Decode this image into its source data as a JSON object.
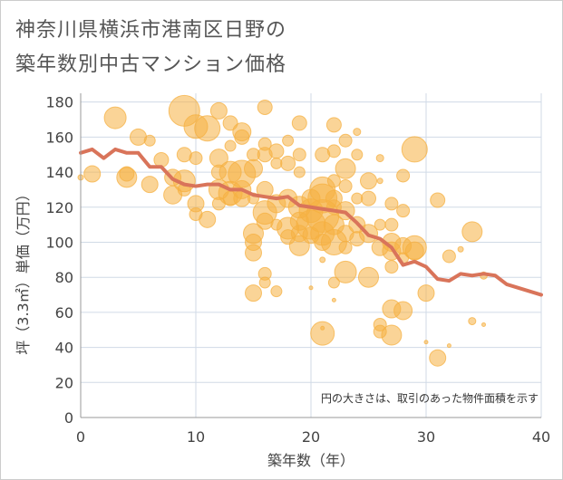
{
  "title_lines": [
    "神奈川県横浜市港南区日野の",
    "築年数別中古マンション価格"
  ],
  "chart_data": {
    "type": "scatter",
    "title": "神奈川県横浜市港南区日野の築年数別中古マンション価格",
    "xlabel": "築年数（年）",
    "ylabel": "坪（3.3㎡）単価（万円）",
    "xlim": [
      0,
      40
    ],
    "ylim": [
      0,
      185
    ],
    "x_ticks": [
      0,
      10,
      20,
      30,
      40
    ],
    "y_ticks": [
      0,
      20,
      40,
      60,
      80,
      100,
      120,
      140,
      160,
      180
    ],
    "grid": true,
    "note": "円の大きさは、取引のあった物件面積を示す",
    "colors": {
      "bubble": "#f5b041",
      "line": "#d9745a",
      "grid": "#d0dae6",
      "axis": "#999999"
    },
    "series": [
      {
        "type": "line",
        "x": [
          0,
          1,
          2,
          3,
          4,
          5,
          6,
          7,
          8,
          9,
          10,
          11,
          12,
          13,
          14,
          15,
          16,
          17,
          18,
          19,
          20,
          21,
          22,
          23,
          24,
          25,
          26,
          27,
          28,
          29,
          30,
          31,
          32,
          33,
          34,
          35,
          36,
          37,
          38,
          39,
          40
        ],
        "values": [
          151,
          153,
          148,
          153,
          151,
          151,
          143,
          143,
          136,
          133,
          132,
          133,
          133,
          130,
          130,
          127,
          126,
          125,
          126,
          121,
          120,
          119,
          118,
          117,
          111,
          104,
          102,
          97,
          87,
          89,
          86,
          79,
          78,
          82,
          81,
          82,
          81,
          76,
          74,
          72,
          70
        ]
      },
      {
        "type": "bubble",
        "points": [
          [
            0,
            137,
            3
          ],
          [
            1,
            139,
            9
          ],
          [
            3,
            171,
            12
          ],
          [
            4,
            139,
            8
          ],
          [
            4,
            137,
            11
          ],
          [
            5,
            160,
            9
          ],
          [
            6,
            158,
            6
          ],
          [
            6,
            133,
            9
          ],
          [
            7,
            147,
            8
          ],
          [
            8,
            127,
            10
          ],
          [
            8,
            137,
            9
          ],
          [
            9,
            175,
            17
          ],
          [
            9,
            150,
            8
          ],
          [
            9,
            135,
            12
          ],
          [
            9,
            130,
            7
          ],
          [
            10,
            166,
            13
          ],
          [
            10,
            148,
            7
          ],
          [
            10,
            122,
            9
          ],
          [
            10,
            116,
            7
          ],
          [
            11,
            165,
            14
          ],
          [
            11,
            113,
            9
          ],
          [
            12,
            175,
            9
          ],
          [
            12,
            148,
            10
          ],
          [
            12,
            140,
            8
          ],
          [
            12,
            130,
            11
          ],
          [
            12,
            122,
            7
          ],
          [
            13,
            168,
            8
          ],
          [
            13,
            155,
            6
          ],
          [
            13,
            140,
            12
          ],
          [
            13,
            128,
            13
          ],
          [
            13,
            125,
            8
          ],
          [
            14,
            163,
            10
          ],
          [
            14,
            160,
            8
          ],
          [
            14,
            139,
            15
          ],
          [
            14,
            130,
            10
          ],
          [
            14,
            125,
            9
          ],
          [
            15,
            150,
            7
          ],
          [
            15,
            142,
            10
          ],
          [
            15,
            125,
            6
          ],
          [
            15,
            105,
            11
          ],
          [
            15,
            100,
            9
          ],
          [
            15,
            94,
            9
          ],
          [
            15,
            71,
            9
          ],
          [
            16,
            177,
            8
          ],
          [
            16,
            156,
            7
          ],
          [
            16,
            150,
            8
          ],
          [
            16,
            130,
            9
          ],
          [
            16,
            117,
            13
          ],
          [
            16,
            112,
            9
          ],
          [
            16,
            82,
            7
          ],
          [
            16,
            77,
            6
          ],
          [
            17,
            152,
            8
          ],
          [
            17,
            145,
            6
          ],
          [
            17,
            122,
            10
          ],
          [
            17,
            110,
            6
          ],
          [
            17,
            72,
            6
          ],
          [
            18,
            158,
            6
          ],
          [
            18,
            145,
            8
          ],
          [
            18,
            125,
            10
          ],
          [
            18,
            108,
            12
          ],
          [
            18,
            103,
            8
          ],
          [
            19,
            168,
            8
          ],
          [
            19,
            150,
            7
          ],
          [
            19,
            140,
            6
          ],
          [
            19,
            120,
            12
          ],
          [
            19,
            112,
            10
          ],
          [
            19,
            105,
            9
          ],
          [
            19,
            98,
            11
          ],
          [
            20,
            125,
            10
          ],
          [
            20,
            118,
            13
          ],
          [
            20,
            110,
            16
          ],
          [
            20,
            104,
            9
          ],
          [
            20,
            74,
            2
          ],
          [
            21,
            150,
            8
          ],
          [
            21,
            130,
            14
          ],
          [
            21,
            125,
            16
          ],
          [
            21,
            115,
            18
          ],
          [
            21,
            105,
            13
          ],
          [
            21,
            100,
            9
          ],
          [
            21,
            90,
            3
          ],
          [
            21,
            51,
            2
          ],
          [
            21,
            48,
            13
          ],
          [
            22,
            167,
            8
          ],
          [
            22,
            152,
            7
          ],
          [
            22,
            135,
            7
          ],
          [
            22,
            125,
            9
          ],
          [
            22,
            120,
            8
          ],
          [
            22,
            110,
            11
          ],
          [
            22,
            100,
            14
          ],
          [
            22,
            77,
            6
          ],
          [
            22,
            67,
            2
          ],
          [
            23,
            158,
            7
          ],
          [
            23,
            142,
            11
          ],
          [
            23,
            132,
            7
          ],
          [
            23,
            118,
            10
          ],
          [
            23,
            105,
            9
          ],
          [
            23,
            97,
            7
          ],
          [
            23,
            83,
            12
          ],
          [
            24,
            163,
            4
          ],
          [
            24,
            150,
            6
          ],
          [
            24,
            125,
            6
          ],
          [
            24,
            110,
            9
          ],
          [
            24,
            102,
            8
          ],
          [
            25,
            135,
            9
          ],
          [
            25,
            125,
            8
          ],
          [
            25,
            105,
            10
          ],
          [
            25,
            80,
            11
          ],
          [
            26,
            148,
            4
          ],
          [
            26,
            135,
            3
          ],
          [
            26,
            110,
            6
          ],
          [
            26,
            97,
            9
          ],
          [
            26,
            53,
            7
          ],
          [
            26,
            49,
            7
          ],
          [
            27,
            122,
            7
          ],
          [
            27,
            110,
            7
          ],
          [
            27,
            100,
            10
          ],
          [
            27,
            95,
            10
          ],
          [
            27,
            86,
            7
          ],
          [
            27,
            62,
            10
          ],
          [
            27,
            47,
            11
          ],
          [
            28,
            138,
            7
          ],
          [
            28,
            118,
            7
          ],
          [
            28,
            98,
            9
          ],
          [
            28,
            91,
            6
          ],
          [
            28,
            61,
            10
          ],
          [
            29,
            153,
            14
          ],
          [
            29,
            97,
            13
          ],
          [
            29,
            95,
            10
          ],
          [
            30,
            71,
            9
          ],
          [
            30,
            43,
            2
          ],
          [
            31,
            124,
            8
          ],
          [
            31,
            34,
            9
          ],
          [
            32,
            92,
            7
          ],
          [
            32,
            41,
            2
          ],
          [
            33,
            96,
            3
          ],
          [
            34,
            106,
            11
          ],
          [
            34,
            55,
            4
          ],
          [
            35,
            53,
            2
          ],
          [
            35,
            81,
            4
          ]
        ]
      }
    ]
  }
}
